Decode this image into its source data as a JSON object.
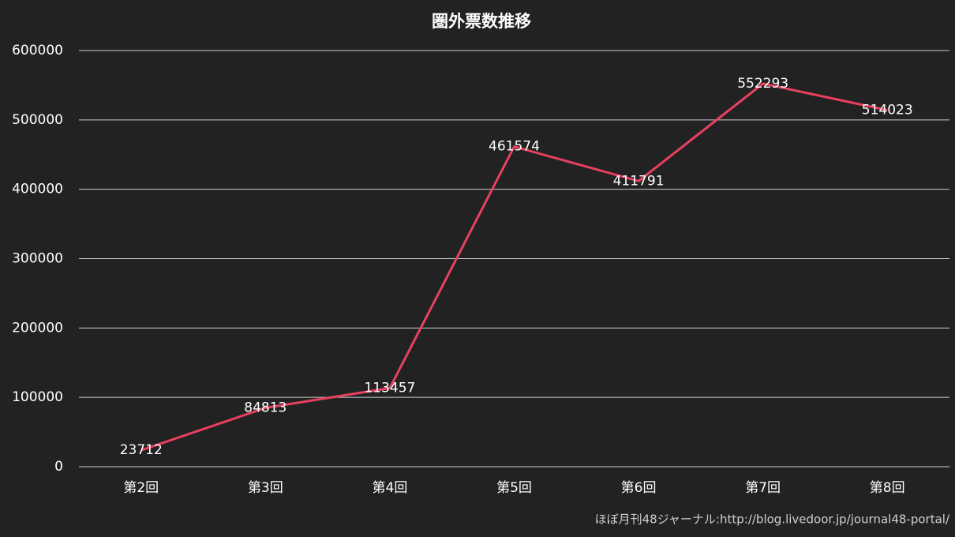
{
  "chart_data": {
    "type": "line",
    "title": "圏外票数推移",
    "categories": [
      "第2回",
      "第3回",
      "第4回",
      "第5回",
      "第6回",
      "第7回",
      "第8回"
    ],
    "series": [
      {
        "name": "圏外票数",
        "color": "#e8405f",
        "values": [
          23712,
          84813,
          113457,
          461574,
          411791,
          552293,
          514023
        ]
      }
    ],
    "ylim": [
      0,
      600000
    ],
    "yticks": [
      0,
      100000,
      200000,
      300000,
      400000,
      500000,
      600000
    ],
    "grid": true,
    "source": "ほぼ月刊48ジャーナル:http://blog.livedoor.jp/journal48-portal/"
  }
}
